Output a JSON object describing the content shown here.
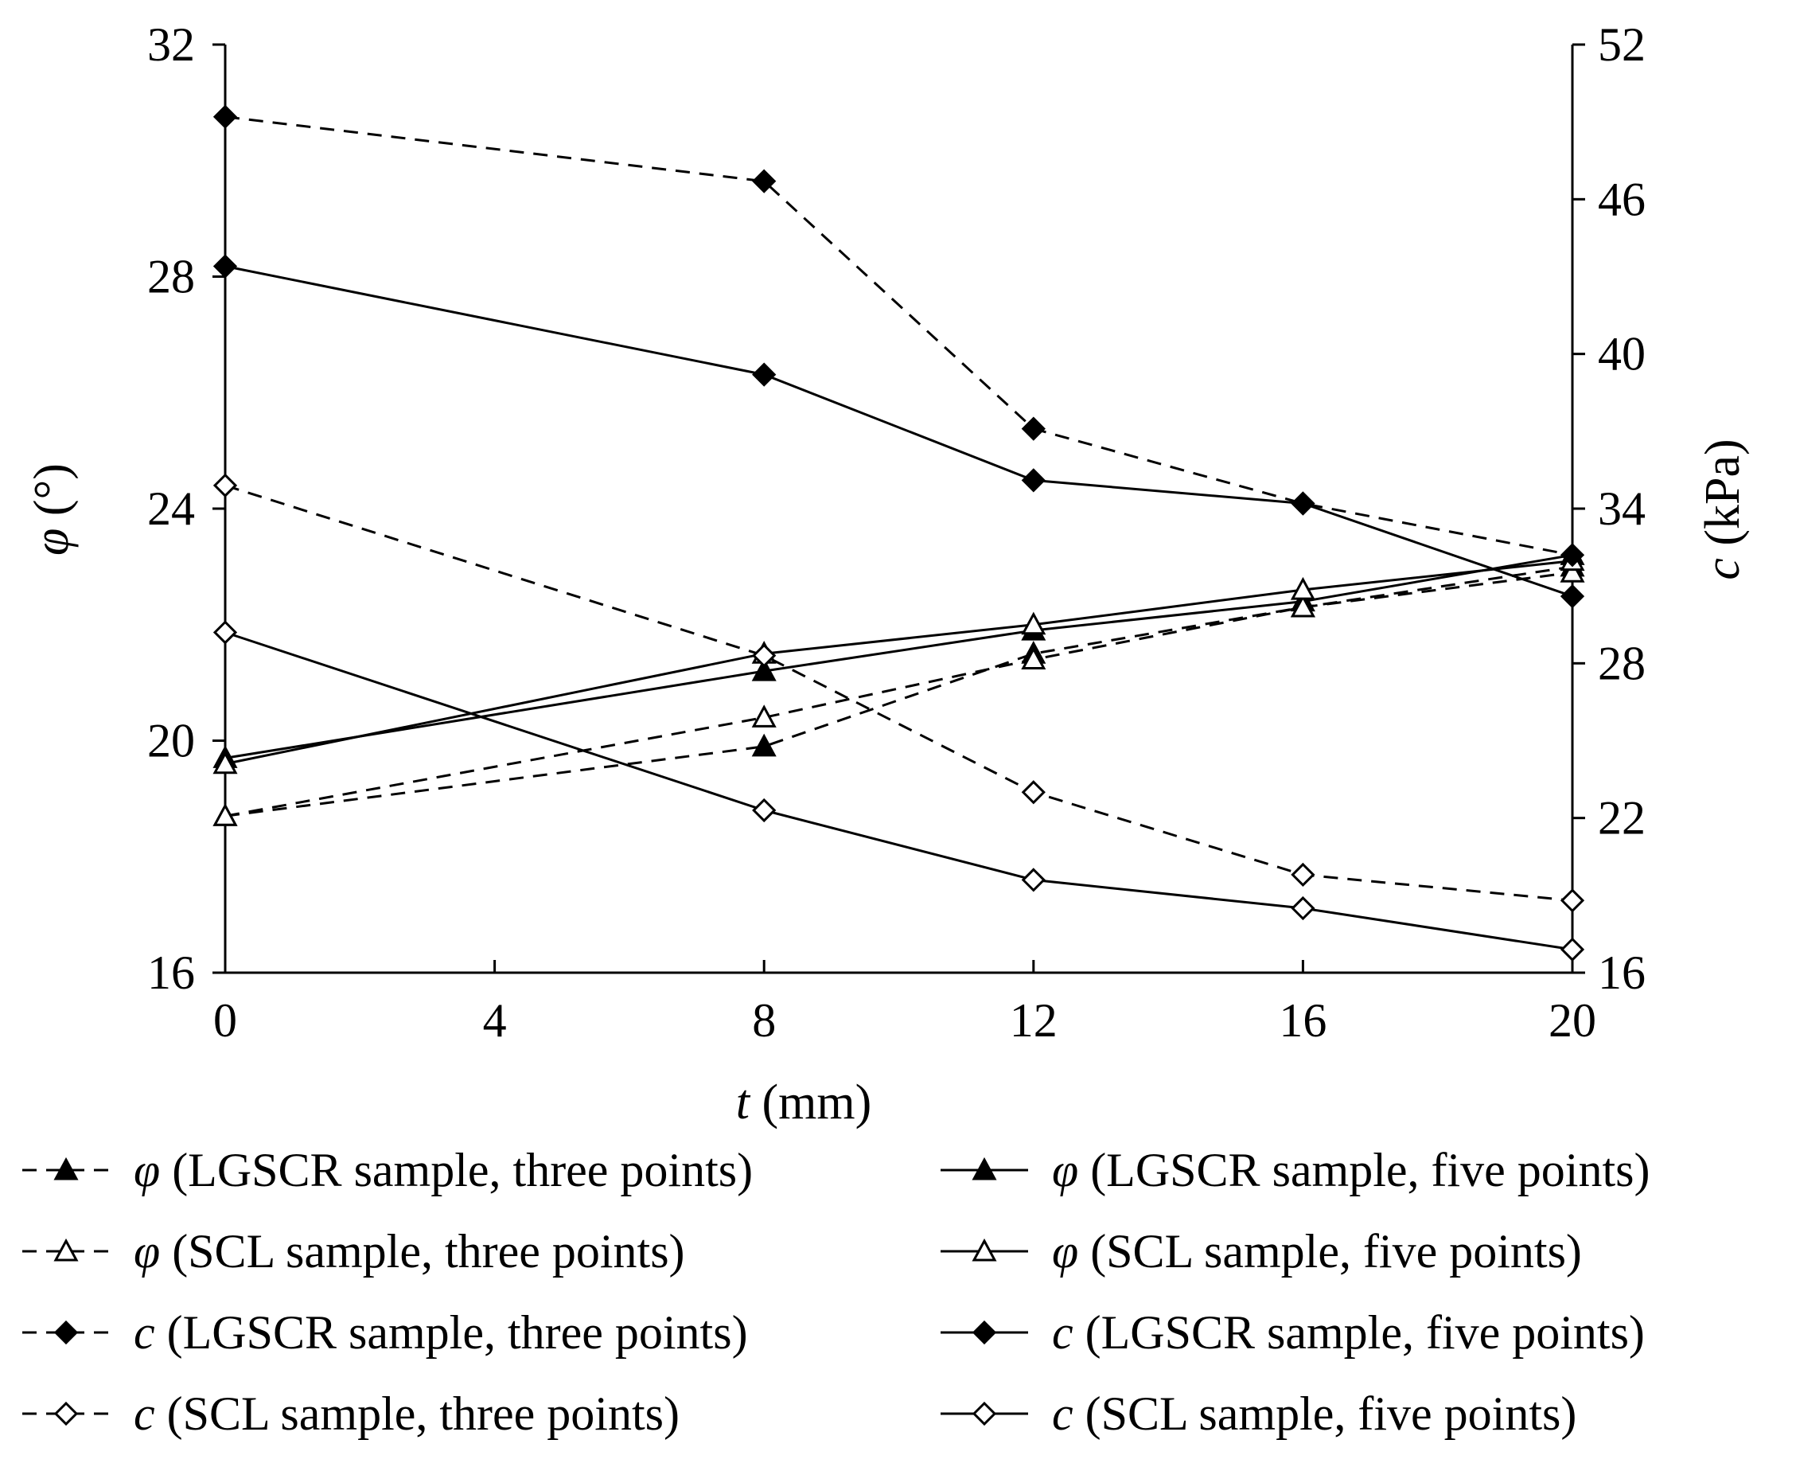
{
  "chart_data": {
    "type": "line",
    "x": [
      0,
      8,
      12,
      16,
      20
    ],
    "xlabel": {
      "symbol": "t",
      "unit": " (mm)"
    },
    "ylabel_left": {
      "symbol": "φ",
      "unit": " (°)"
    },
    "ylabel_right": {
      "symbol": "c",
      "unit": " (kPa)"
    },
    "xlim": [
      0,
      20
    ],
    "ylim_left": [
      16,
      32
    ],
    "ylim_right": [
      16,
      52
    ],
    "xticks": [
      0,
      4,
      8,
      12,
      16,
      20
    ],
    "yticks_left": [
      16,
      20,
      24,
      28,
      32
    ],
    "yticks_right": [
      16,
      22,
      28,
      34,
      40,
      46,
      52
    ],
    "grid": false,
    "legend_position": "bottom",
    "series": [
      {
        "id": "phi-lgscr-three",
        "symbol": "φ",
        "name": " (LGSCR sample, three points)",
        "axis": "left",
        "line": "dashed",
        "marker": "triangle-filled",
        "values": [
          18.7,
          19.9,
          21.5,
          22.3,
          23.0
        ]
      },
      {
        "id": "phi-lgscr-five",
        "symbol": "φ",
        "name": " (LGSCR sample, five points)",
        "axis": "left",
        "line": "solid",
        "marker": "triangle-filled",
        "values": [
          19.7,
          21.2,
          21.9,
          22.4,
          23.2
        ]
      },
      {
        "id": "phi-scl-three",
        "symbol": "φ",
        "name": " (SCL sample, three points)",
        "axis": "left",
        "line": "dashed",
        "marker": "triangle-open",
        "values": [
          18.7,
          20.4,
          21.4,
          22.3,
          22.9
        ]
      },
      {
        "id": "phi-scl-five",
        "symbol": "φ",
        "name": " (SCL sample, five points)",
        "axis": "left",
        "line": "solid",
        "marker": "triangle-open",
        "values": [
          19.6,
          21.5,
          22.0,
          22.6,
          23.1
        ]
      },
      {
        "id": "c-lgscr-three",
        "symbol": "c",
        "name": " (LGSCR sample, three points)",
        "axis": "right",
        "line": "dashed",
        "marker": "diamond-filled",
        "values": [
          49.2,
          46.7,
          37.1,
          34.2,
          32.2
        ]
      },
      {
        "id": "c-lgscr-five",
        "symbol": "c",
        "name": " (LGSCR sample, five points)",
        "axis": "right",
        "line": "solid",
        "marker": "diamond-filled",
        "values": [
          43.4,
          39.2,
          35.1,
          34.2,
          30.6
        ]
      },
      {
        "id": "c-scl-three",
        "symbol": "c",
        "name": " (SCL sample, three points)",
        "axis": "right",
        "line": "dashed",
        "marker": "diamond-open",
        "values": [
          34.9,
          28.3,
          23.0,
          19.8,
          18.8
        ]
      },
      {
        "id": "c-scl-five",
        "symbol": "c",
        "name": " (SCL sample, five points)",
        "axis": "right",
        "line": "solid",
        "marker": "diamond-open",
        "values": [
          29.2,
          22.3,
          19.6,
          18.5,
          16.9
        ]
      }
    ]
  }
}
